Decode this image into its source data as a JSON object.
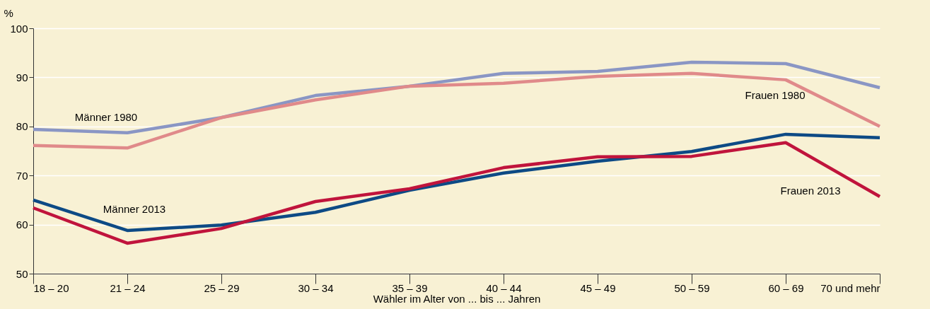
{
  "chart_data": {
    "type": "line",
    "xlabel": "Wähler im Alter von ... bis ... Jahren",
    "ylabel": "%",
    "categories": [
      "18 – 20",
      "21 – 24",
      "25 – 29",
      "30 – 34",
      "35 – 39",
      "40 – 44",
      "45 – 49",
      "50 – 59",
      "60 – 69",
      "70 und mehr"
    ],
    "series": [
      {
        "name": "Männer 1980",
        "color": "#8a96c4",
        "values": [
          79.4,
          78.7,
          81.8,
          86.3,
          88.2,
          90.8,
          91.2,
          93.1,
          92.8,
          87.9
        ]
      },
      {
        "name": "Frauen 1980",
        "color": "#e08a8a",
        "values": [
          76.1,
          75.6,
          81.8,
          85.4,
          88.2,
          88.8,
          90.2,
          90.8,
          89.5,
          80.0
        ]
      },
      {
        "name": "Männer 2013",
        "color": "#0d4a85",
        "values": [
          65.0,
          58.8,
          59.9,
          62.5,
          67.0,
          70.5,
          72.9,
          74.9,
          78.4,
          77.7
        ]
      },
      {
        "name": "Frauen 2013",
        "color": "#c0143c",
        "values": [
          63.4,
          56.2,
          59.2,
          64.7,
          67.3,
          71.6,
          73.8,
          73.9,
          76.7,
          65.7
        ]
      }
    ],
    "ylim": [
      50,
      100
    ],
    "yticks": [
      50,
      60,
      70,
      80,
      90,
      100
    ],
    "grid": "y",
    "legend": false,
    "marker": "none",
    "line_style": "solid"
  }
}
